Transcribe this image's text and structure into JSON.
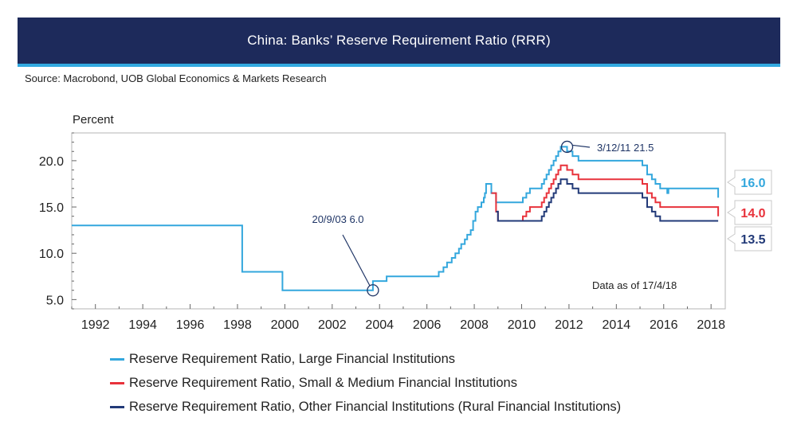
{
  "header": {
    "title": "China: Banks’ Reserve Requirement Ratio (RRR)"
  },
  "source": "Source: Macrobond, UOB Global Economics & Markets Research",
  "colors": {
    "header_bg": "#1d2a5b",
    "header_rule": "#32a9e0",
    "large": "#33a7dd",
    "small": "#e8323b",
    "other": "#223a78"
  },
  "chart_data": {
    "type": "line",
    "title": "China: Banks’ Reserve Requirement Ratio (RRR)",
    "ylabel": "Percent",
    "xlim": [
      1991.0,
      2018.6
    ],
    "ylim": [
      4,
      23
    ],
    "y_ticks": [
      5,
      10,
      15,
      20
    ],
    "y_tick_labels": [
      "5.0",
      "10.0",
      "15.0",
      "20.0"
    ],
    "x_ticks": [
      1992,
      1994,
      1996,
      1998,
      2000,
      2002,
      2004,
      2006,
      2008,
      2010,
      2012,
      2014,
      2016,
      2018
    ],
    "x_tick_labels": [
      "1992",
      "1994",
      "1996",
      "1998",
      "2000",
      "2002",
      "2004",
      "2006",
      "2008",
      "2010",
      "2012",
      "2014",
      "2016",
      "2018"
    ],
    "note": "Data as of 17/4/18",
    "annotations": [
      {
        "text": "20/9/03 6.0",
        "x": 2003.72,
        "y": 6.0
      },
      {
        "text": "3/12/11 21.5",
        "x": 2011.92,
        "y": 21.5
      }
    ],
    "end_labels": [
      "16.0",
      "14.0",
      "13.5"
    ],
    "series": [
      {
        "name": "Reserve Requirement Ratio, Large Financial Institutions",
        "points": [
          [
            1991.0,
            13.0
          ],
          [
            1998.2,
            13.0
          ],
          [
            1998.2,
            8.0
          ],
          [
            1999.9,
            8.0
          ],
          [
            1999.9,
            6.0
          ],
          [
            2003.72,
            6.0
          ],
          [
            2003.72,
            7.0
          ],
          [
            2004.3,
            7.0
          ],
          [
            2004.3,
            7.5
          ],
          [
            2006.5,
            7.5
          ],
          [
            2006.5,
            8.0
          ],
          [
            2006.7,
            8.0
          ],
          [
            2006.7,
            8.5
          ],
          [
            2006.85,
            8.5
          ],
          [
            2006.85,
            9.0
          ],
          [
            2007.05,
            9.0
          ],
          [
            2007.05,
            9.5
          ],
          [
            2007.2,
            9.5
          ],
          [
            2007.2,
            10.0
          ],
          [
            2007.35,
            10.0
          ],
          [
            2007.35,
            10.5
          ],
          [
            2007.45,
            10.5
          ],
          [
            2007.45,
            11.0
          ],
          [
            2007.6,
            11.0
          ],
          [
            2007.6,
            11.5
          ],
          [
            2007.7,
            11.5
          ],
          [
            2007.7,
            12.0
          ],
          [
            2007.85,
            12.0
          ],
          [
            2007.85,
            12.5
          ],
          [
            2007.95,
            12.5
          ],
          [
            2007.95,
            13.5
          ],
          [
            2008.05,
            13.5
          ],
          [
            2008.05,
            14.5
          ],
          [
            2008.15,
            14.5
          ],
          [
            2008.15,
            15.0
          ],
          [
            2008.3,
            15.0
          ],
          [
            2008.3,
            15.5
          ],
          [
            2008.4,
            15.5
          ],
          [
            2008.4,
            16.0
          ],
          [
            2008.45,
            16.0
          ],
          [
            2008.45,
            16.5
          ],
          [
            2008.5,
            16.5
          ],
          [
            2008.5,
            17.5
          ],
          [
            2008.72,
            17.5
          ],
          [
            2008.72,
            16.5
          ],
          [
            2008.92,
            16.5
          ],
          [
            2008.92,
            15.5
          ],
          [
            2010.05,
            15.5
          ],
          [
            2010.05,
            16.0
          ],
          [
            2010.2,
            16.0
          ],
          [
            2010.2,
            16.5
          ],
          [
            2010.35,
            16.5
          ],
          [
            2010.35,
            17.0
          ],
          [
            2010.85,
            17.0
          ],
          [
            2010.85,
            17.5
          ],
          [
            2010.95,
            17.5
          ],
          [
            2010.95,
            18.0
          ],
          [
            2011.05,
            18.0
          ],
          [
            2011.05,
            18.5
          ],
          [
            2011.15,
            18.5
          ],
          [
            2011.15,
            19.0
          ],
          [
            2011.25,
            19.0
          ],
          [
            2011.25,
            19.5
          ],
          [
            2011.35,
            19.5
          ],
          [
            2011.35,
            20.0
          ],
          [
            2011.45,
            20.0
          ],
          [
            2011.45,
            20.5
          ],
          [
            2011.55,
            20.5
          ],
          [
            2011.55,
            21.0
          ],
          [
            2011.65,
            21.0
          ],
          [
            2011.65,
            21.5
          ],
          [
            2011.92,
            21.5
          ],
          [
            2011.92,
            21.0
          ],
          [
            2012.15,
            21.0
          ],
          [
            2012.15,
            20.5
          ],
          [
            2012.4,
            20.5
          ],
          [
            2012.4,
            20.0
          ],
          [
            2015.1,
            20.0
          ],
          [
            2015.1,
            19.5
          ],
          [
            2015.3,
            19.5
          ],
          [
            2015.3,
            18.5
          ],
          [
            2015.5,
            18.5
          ],
          [
            2015.5,
            18.0
          ],
          [
            2015.65,
            18.0
          ],
          [
            2015.65,
            17.5
          ],
          [
            2015.85,
            17.5
          ],
          [
            2015.85,
            17.0
          ],
          [
            2016.15,
            17.0
          ],
          [
            2016.15,
            16.5
          ],
          [
            2016.2,
            16.5
          ],
          [
            2016.2,
            17.0
          ],
          [
            2018.3,
            17.0
          ],
          [
            2018.3,
            16.0
          ]
        ]
      },
      {
        "name": "Reserve Requirement Ratio, Small & Medium Financial Institutions",
        "points": [
          [
            2008.72,
            16.5
          ],
          [
            2008.92,
            16.5
          ],
          [
            2008.92,
            14.5
          ],
          [
            2009.0,
            14.5
          ],
          [
            2009.0,
            13.5
          ],
          [
            2010.05,
            13.5
          ],
          [
            2010.05,
            14.0
          ],
          [
            2010.2,
            14.0
          ],
          [
            2010.2,
            14.5
          ],
          [
            2010.35,
            14.5
          ],
          [
            2010.35,
            15.0
          ],
          [
            2010.85,
            15.0
          ],
          [
            2010.85,
            15.5
          ],
          [
            2010.95,
            15.5
          ],
          [
            2010.95,
            16.0
          ],
          [
            2011.05,
            16.0
          ],
          [
            2011.05,
            16.5
          ],
          [
            2011.15,
            16.5
          ],
          [
            2011.15,
            17.0
          ],
          [
            2011.25,
            17.0
          ],
          [
            2011.25,
            17.5
          ],
          [
            2011.35,
            17.5
          ],
          [
            2011.35,
            18.0
          ],
          [
            2011.45,
            18.0
          ],
          [
            2011.45,
            18.5
          ],
          [
            2011.55,
            18.5
          ],
          [
            2011.55,
            19.0
          ],
          [
            2011.65,
            19.0
          ],
          [
            2011.65,
            19.5
          ],
          [
            2011.92,
            19.5
          ],
          [
            2011.92,
            19.0
          ],
          [
            2012.15,
            19.0
          ],
          [
            2012.15,
            18.5
          ],
          [
            2012.4,
            18.5
          ],
          [
            2012.4,
            18.0
          ],
          [
            2015.1,
            18.0
          ],
          [
            2015.1,
            17.5
          ],
          [
            2015.3,
            17.5
          ],
          [
            2015.3,
            16.5
          ],
          [
            2015.5,
            16.5
          ],
          [
            2015.5,
            16.0
          ],
          [
            2015.65,
            16.0
          ],
          [
            2015.65,
            15.5
          ],
          [
            2015.85,
            15.5
          ],
          [
            2015.85,
            15.0
          ],
          [
            2018.3,
            15.0
          ],
          [
            2018.3,
            14.0
          ]
        ]
      },
      {
        "name": "Reserve Requirement Ratio, Other Financial Institutions (Rural Financial Institutions)",
        "points": [
          [
            2008.92,
            14.5
          ],
          [
            2009.0,
            14.5
          ],
          [
            2009.0,
            13.5
          ],
          [
            2010.85,
            13.5
          ],
          [
            2010.85,
            14.0
          ],
          [
            2010.95,
            14.0
          ],
          [
            2010.95,
            14.5
          ],
          [
            2011.05,
            14.5
          ],
          [
            2011.05,
            15.0
          ],
          [
            2011.15,
            15.0
          ],
          [
            2011.15,
            15.5
          ],
          [
            2011.25,
            15.5
          ],
          [
            2011.25,
            16.0
          ],
          [
            2011.35,
            16.0
          ],
          [
            2011.35,
            16.5
          ],
          [
            2011.45,
            16.5
          ],
          [
            2011.45,
            17.0
          ],
          [
            2011.55,
            17.0
          ],
          [
            2011.55,
            17.5
          ],
          [
            2011.65,
            17.5
          ],
          [
            2011.65,
            18.0
          ],
          [
            2011.92,
            18.0
          ],
          [
            2011.92,
            17.5
          ],
          [
            2012.15,
            17.5
          ],
          [
            2012.15,
            17.0
          ],
          [
            2012.4,
            17.0
          ],
          [
            2012.4,
            16.5
          ],
          [
            2015.1,
            16.5
          ],
          [
            2015.1,
            16.0
          ],
          [
            2015.3,
            16.0
          ],
          [
            2015.3,
            15.0
          ],
          [
            2015.5,
            15.0
          ],
          [
            2015.5,
            14.5
          ],
          [
            2015.65,
            14.5
          ],
          [
            2015.65,
            14.0
          ],
          [
            2015.85,
            14.0
          ],
          [
            2015.85,
            13.5
          ],
          [
            2018.3,
            13.5
          ]
        ]
      }
    ]
  }
}
